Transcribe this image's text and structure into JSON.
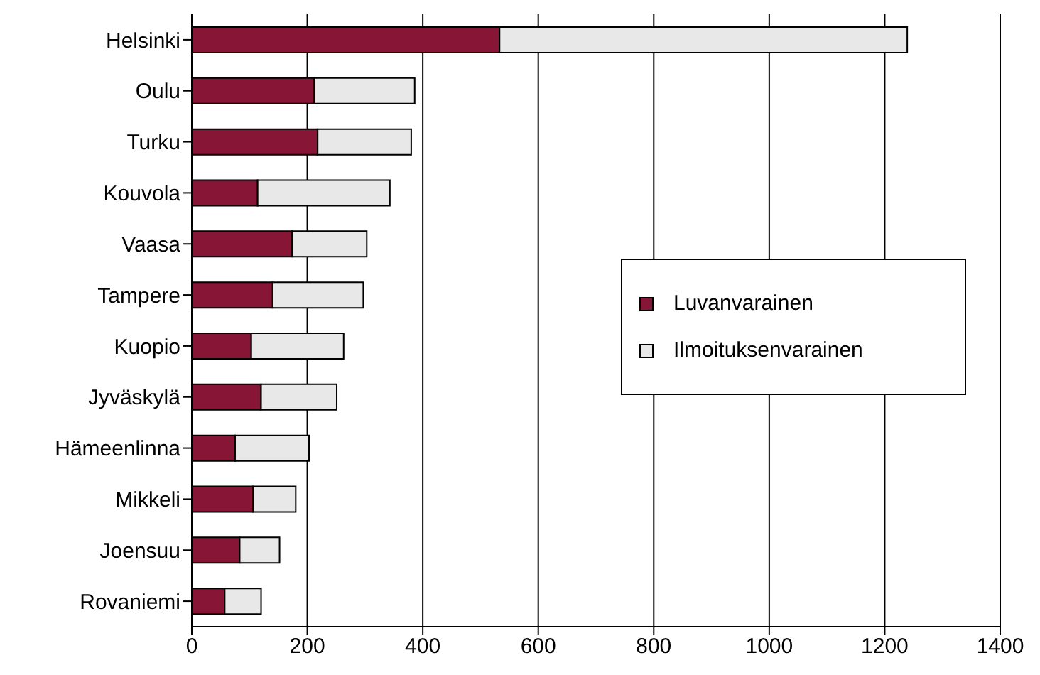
{
  "chart_data": {
    "type": "bar",
    "orientation": "horizontal",
    "stacked": true,
    "categories": [
      "Helsinki",
      "Oulu",
      "Turku",
      "Kouvola",
      "Vaasa",
      "Tampere",
      "Kuopio",
      "Jyväskylä",
      "Hämeenlinna",
      "Mikkeli",
      "Joensuu",
      "Rovaniemi"
    ],
    "series": [
      {
        "name": "Luvanvarainen",
        "color": "#861536",
        "values": [
          533,
          212,
          218,
          114,
          174,
          140,
          103,
          120,
          75,
          106,
          83,
          57
        ]
      },
      {
        "name": "Ilmoituksenvarainen",
        "color": "#e8e8e8",
        "values": [
          706,
          174,
          162,
          229,
          129,
          157,
          160,
          131,
          128,
          74,
          69,
          63
        ]
      }
    ],
    "xlim": [
      0,
      1400
    ],
    "xticks": [
      0,
      200,
      400,
      600,
      800,
      1000,
      1200,
      1400
    ],
    "grid": "x",
    "legend": "right"
  }
}
